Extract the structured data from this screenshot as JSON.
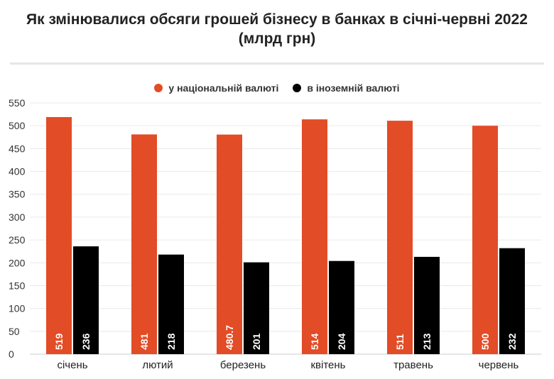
{
  "title_line1": "Як змінювалися обсяги грошей бізнесу в банках в січні-червні 2022",
  "title_line2": "(млрд грн)",
  "colors": {
    "national": "#e24c26",
    "foreign": "#000000",
    "grid": "#e9e9e9",
    "axis": "#cccccc"
  },
  "chart_data": {
    "type": "bar",
    "title": "Як змінювалися обсяги грошей бізнесу в банках в січні-червні 2022 (млрд грн)",
    "categories": [
      "січень",
      "лютий",
      "березень",
      "квітень",
      "травень",
      "червень"
    ],
    "series": [
      {
        "name": "у національній валюті",
        "values": [
          519,
          481,
          480.7,
          514,
          511,
          500
        ],
        "labels": [
          "519",
          "481",
          "480.7",
          "514",
          "511",
          "500"
        ]
      },
      {
        "name": "в іноземній валюті",
        "values": [
          236,
          218,
          201,
          204,
          213,
          232
        ],
        "labels": [
          "236",
          "218",
          "201",
          "204",
          "213",
          "232"
        ]
      }
    ],
    "y_ticks": [
      "0",
      "50",
      "100",
      "150",
      "200",
      "250",
      "300",
      "350",
      "400",
      "450",
      "500",
      "550"
    ],
    "ylim": [
      0,
      550
    ],
    "grid": true,
    "legend_position": "top"
  }
}
